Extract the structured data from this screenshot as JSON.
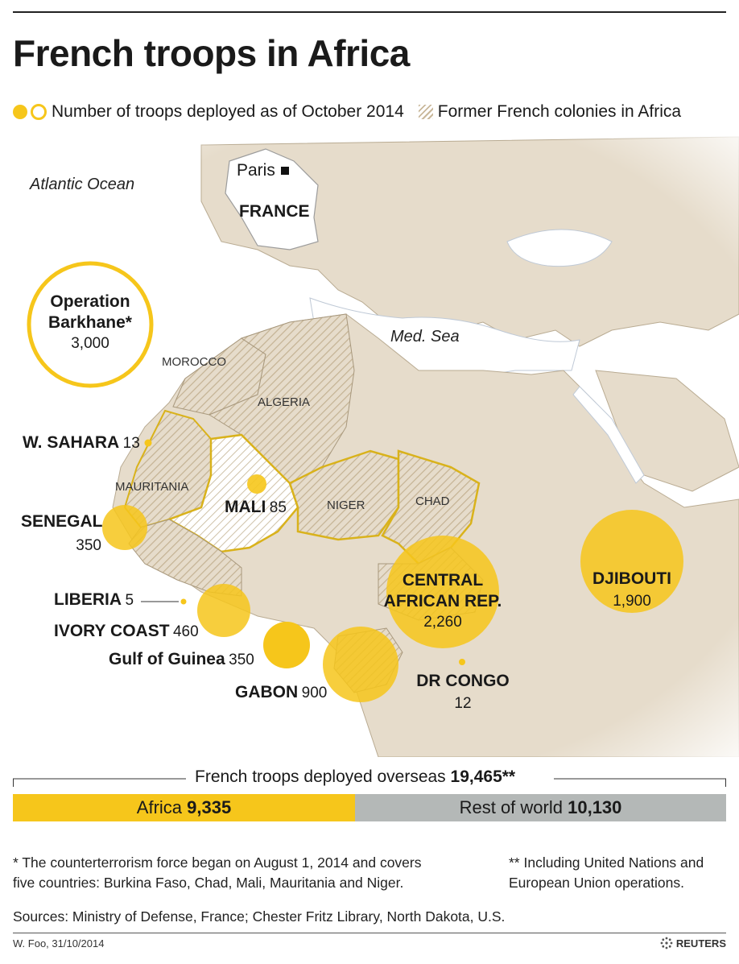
{
  "title": "French troops in Africa",
  "legend": {
    "troops_label": "Number of troops deployed as of October 2014",
    "colonies_label": "Former French colonies in Africa"
  },
  "colors": {
    "circle": "#f6c61b",
    "land": "#e6dccb",
    "sea": "#ffffff",
    "hatch": "#c9b89b",
    "rest_of_world": "#b4b8b7"
  },
  "map_labels": {
    "atlantic": "Atlantic Ocean",
    "paris": "Paris",
    "france": "FRANCE",
    "med_sea": "Med. Sea",
    "morocco": "MOROCCO",
    "algeria": "ALGERIA",
    "mauritania": "MAURITANIA",
    "niger": "NIGER",
    "chad": "CHAD"
  },
  "deployments": {
    "barkhane": {
      "name_line1": "Operation",
      "name_line2": "Barkhane*",
      "troops": "3,000"
    },
    "w_sahara": {
      "name": "W. SAHARA",
      "troops": "13"
    },
    "senegal": {
      "name": "SENEGAL",
      "troops": "350"
    },
    "mali": {
      "name": "MALI",
      "troops": "85"
    },
    "liberia": {
      "name": "LIBERIA",
      "troops": "5"
    },
    "ivory_coast": {
      "name": "IVORY COAST",
      "troops": "460"
    },
    "gulf_of_guinea": {
      "name": "Gulf of Guinea",
      "troops": "350"
    },
    "gabon": {
      "name": "GABON",
      "troops": "900"
    },
    "car": {
      "name_line1": "CENTRAL",
      "name_line2": "AFRICAN REP.",
      "troops": "2,260"
    },
    "dr_congo": {
      "name": "DR CONGO",
      "troops": "12"
    },
    "djibouti": {
      "name": "DJIBOUTI",
      "troops": "1,900"
    }
  },
  "summary": {
    "label": "French troops deployed overseas",
    "total": "19,465**",
    "africa_label": "Africa",
    "africa_value": "9,335",
    "africa_fraction": 0.4796,
    "rest_label": "Rest of world",
    "rest_value": "10,130"
  },
  "notes": {
    "note1_line1": "* The counterterrorism force began on August 1, 2014 and covers",
    "note1_line2": "five countries: Burkina Faso, Chad, Mali, Mauritania and Niger.",
    "note2_line1": "** Including United Nations and",
    "note2_line2": "European Union operations.",
    "sources": "Sources: Ministry of Defense, France; Chester Fritz Library, North Dakota, U.S."
  },
  "credit": "W. Foo, 31/10/2014",
  "brand": "REUTERS"
}
